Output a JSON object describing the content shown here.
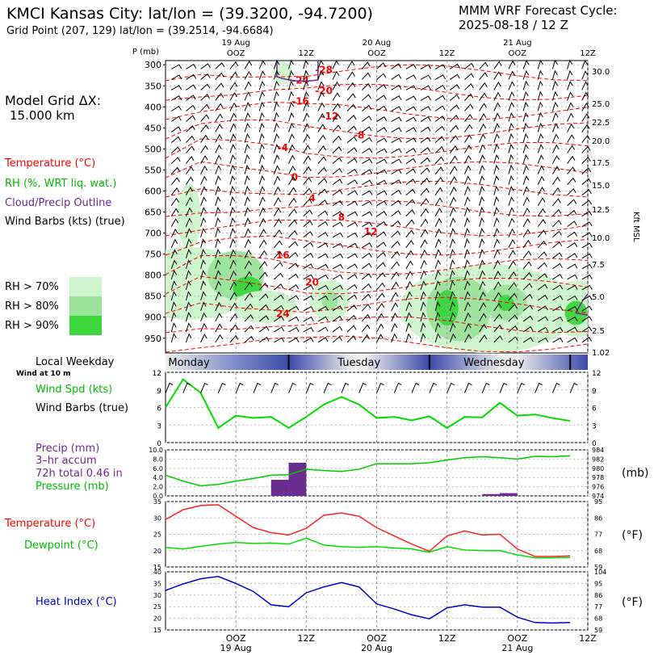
{
  "header": {
    "title": "KMCI Kansas City:  lat/lon = (39.3200, -94.7200)",
    "grid": "Grid Point (207, 129) lat/lon = (39.2514, -94.6684)",
    "cycle_line1": "MMM WRF Forecast Cycle:",
    "cycle_line2": "2025-08-18 / 12  Z"
  },
  "left_panel": {
    "model_grid": "Model Grid ΔX:",
    "model_grid_val": "15.000 km",
    "temperature": "Temperature (°C)",
    "rh": "RH (%, WRT liq. wat.)",
    "cloud": "Cloud/Precip Outline",
    "wind": "Wind Barbs (kts) (true)",
    "rh70": "RH > 70%",
    "rh80": "RH > 80%",
    "rh90": "RH > 90%",
    "local_weekday": "Local Weekday",
    "wind_10m": "Wind at 10 m",
    "wind_spd": "Wind Spd (kts)",
    "wind_barbs": "Wind Barbs (true)",
    "precip": "Precip (mm)",
    "accum": "3–hr accum",
    "total": "72h total 0.46 in",
    "pressure": "Pressure (mb)",
    "temp2": "Temperature (°C)",
    "dewpoint": "Dewpoint (°C)",
    "heat_index": "Heat Index (°C)"
  },
  "colors": {
    "temperature": "#ff0000",
    "rh": "#00cc00",
    "cloud": "#6a2c91",
    "heat": "#0000cc",
    "rh70": "#cdf5cd",
    "rh80": "#9ae39a",
    "rh90": "#3ad63a"
  },
  "right_labels": {
    "kft": "Kft MSL",
    "mb": "(mb)",
    "degF1": "(°F)",
    "degF2": "(°F)"
  },
  "chart_data": [
    {
      "type": "heatmap",
      "name_hint": "time-height cross section",
      "ylabel": "P (mb)",
      "y_ticks": [
        "300",
        "350",
        "400",
        "450",
        "500",
        "550",
        "600",
        "650",
        "700",
        "750",
        "800",
        "850",
        "900",
        "950"
      ],
      "right_ticks": [
        "30.0",
        "25.0",
        "22.5",
        "20.0",
        "17.5",
        "15.0",
        "12.5",
        "10.0",
        "7.5",
        "5.0",
        "2.5",
        "1.02"
      ],
      "top_time_labels": [
        {
          "d": "19 Aug",
          "t": "OOZ"
        },
        {
          "d": "",
          "t": "12Z"
        },
        {
          "d": "20 Aug",
          "t": "OOZ"
        },
        {
          "d": "",
          "t": "12Z"
        },
        {
          "d": "21 Aug",
          "t": "OOZ"
        },
        {
          "d": "",
          "t": "12Z"
        }
      ],
      "temp_labels": [
        {
          "v": "-28",
          "hour": 27,
          "p": 320
        },
        {
          "v": "-24",
          "hour": 23,
          "p": 345
        },
        {
          "v": "-20",
          "hour": 27,
          "p": 370
        },
        {
          "v": "-16",
          "hour": 23,
          "p": 395
        },
        {
          "v": "-12",
          "hour": 28,
          "p": 430
        },
        {
          "v": "-8",
          "hour": 33,
          "p": 475
        },
        {
          "v": "-4",
          "hour": 20,
          "p": 505
        },
        {
          "v": "0",
          "hour": 22,
          "p": 575
        },
        {
          "v": "4",
          "hour": 25,
          "p": 625
        },
        {
          "v": "8",
          "hour": 30,
          "p": 670
        },
        {
          "v": "12",
          "hour": 35,
          "p": 705
        },
        {
          "v": "16",
          "hour": 20,
          "p": 760
        },
        {
          "v": "20",
          "hour": 25,
          "p": 825
        },
        {
          "v": "24",
          "hour": 20,
          "p": 900
        }
      ]
    },
    {
      "type": "line",
      "name_hint": "weekday bar",
      "days": [
        "Monday",
        "Tuesday",
        "Wednesday"
      ]
    },
    {
      "type": "line",
      "name_hint": "wind speed",
      "ylim": [
        0,
        12
      ],
      "y_ticks": [
        "0",
        "3",
        "6",
        "9",
        "12"
      ],
      "x_hours": [
        3,
        6,
        9,
        12,
        15,
        18,
        21,
        24,
        27,
        30,
        33,
        36,
        39,
        42,
        45,
        48,
        51,
        54,
        57,
        60,
        63,
        66,
        69,
        72
      ],
      "series": [
        {
          "values": [
            6,
            10.8,
            8.5,
            2.5,
            4.6,
            4.2,
            4.4,
            2.5,
            4.4,
            6.5,
            7.8,
            6.5,
            4.2,
            4.4,
            3.8,
            4.5,
            2.5,
            4.4,
            4.3,
            6.8,
            4.6,
            4.8,
            4.2,
            3.7
          ]
        }
      ]
    },
    {
      "type": "bar",
      "name_hint": "precip and pressure",
      "precip_ylim": [
        0,
        10
      ],
      "precip_ticks": [
        "0.0",
        "2.0",
        "4.0",
        "6.0",
        "8.0",
        "10.0"
      ],
      "pressure_ticks": [
        "974",
        "976",
        "978",
        "980",
        "982",
        "984"
      ],
      "precip_bars": [
        {
          "hour": 21,
          "value": 3.5
        },
        {
          "hour": 24,
          "value": 7.2
        },
        {
          "hour": 57,
          "value": 0.4
        },
        {
          "hour": 60,
          "value": 0.6
        }
      ],
      "pressure_ylim": [
        974,
        984
      ],
      "pressure_hours": [
        3,
        6,
        9,
        12,
        15,
        18,
        21,
        24,
        27,
        30,
        33,
        36,
        39,
        42,
        45,
        48,
        51,
        54,
        57,
        60,
        63,
        66,
        69,
        72
      ],
      "pressure_values": [
        978.5,
        977.2,
        976.2,
        976.5,
        977.2,
        977.8,
        978.5,
        978.6,
        979.8,
        979.5,
        979.3,
        979.8,
        981,
        981,
        981,
        981.2,
        981.8,
        982.3,
        982.5,
        982.3,
        982,
        982.6,
        982.5,
        982.7
      ]
    },
    {
      "type": "line",
      "name_hint": "temperature dewpoint",
      "ylim": [
        15,
        35
      ],
      "y_ticks": [
        "15",
        "20",
        "25",
        "30",
        "35"
      ],
      "f_ticks": [
        "59",
        "68",
        "77",
        "86",
        "95"
      ],
      "hours": [
        3,
        6,
        9,
        12,
        15,
        18,
        21,
        24,
        27,
        30,
        33,
        36,
        39,
        42,
        45,
        48,
        51,
        54,
        57,
        60,
        63,
        66,
        69,
        72
      ],
      "series": [
        {
          "values": [
            29.5,
            32.5,
            33.8,
            34,
            30.5,
            27,
            25.5,
            24.8,
            26.8,
            30.8,
            31.5,
            30.5,
            27,
            24.5,
            22,
            19.8,
            24.5,
            26,
            24.8,
            25,
            20.5,
            18.2,
            18.2,
            18.4
          ]
        },
        {
          "values": [
            21,
            20.5,
            21.3,
            22,
            22.5,
            22.2,
            22.3,
            22,
            23.8,
            21.7,
            21.2,
            21,
            21.2,
            20.8,
            20.5,
            19.5,
            21.2,
            20.2,
            20,
            20,
            18.7,
            17.8,
            17.8,
            17.9
          ]
        }
      ]
    },
    {
      "type": "line",
      "name_hint": "heat index",
      "ylim": [
        15,
        40
      ],
      "y_ticks": [
        "15",
        "20",
        "25",
        "30",
        "35",
        "40"
      ],
      "f_ticks": [
        "59",
        "68",
        "77",
        "86",
        "95",
        "104"
      ],
      "bottom_labels": [
        {
          "t": "OOZ",
          "d": "19 Aug"
        },
        {
          "t": "12Z",
          "d": ""
        },
        {
          "t": "OOZ",
          "d": "20 Aug"
        },
        {
          "t": "12Z",
          "d": ""
        },
        {
          "t": "OOZ",
          "d": "21 Aug"
        },
        {
          "t": "12Z",
          "d": ""
        }
      ],
      "hours": [
        3,
        6,
        9,
        12,
        15,
        18,
        21,
        24,
        27,
        30,
        33,
        36,
        39,
        42,
        45,
        48,
        51,
        54,
        57,
        60,
        63,
        66,
        69,
        72
      ],
      "series": [
        {
          "values": [
            32,
            34.8,
            37,
            38,
            35,
            31.5,
            25.8,
            25,
            31,
            33.5,
            35.4,
            33.5,
            26.2,
            24,
            21.5,
            19.8,
            24.5,
            25.8,
            24.8,
            24.8,
            20.5,
            18.2,
            18,
            18.2
          ]
        }
      ]
    }
  ]
}
